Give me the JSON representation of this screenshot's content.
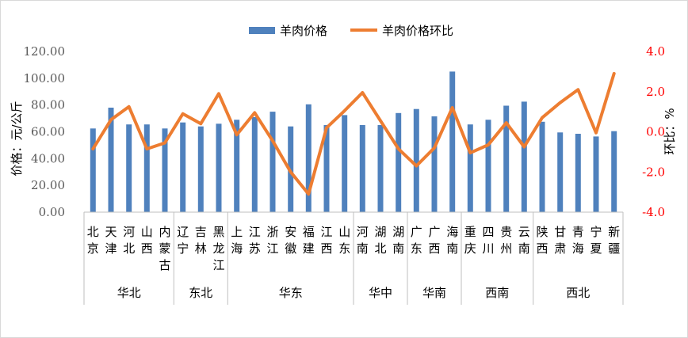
{
  "chart_data": {
    "type": "bar+line",
    "categories": [
      "北京",
      "天津",
      "河北",
      "山西",
      "内蒙古",
      "辽宁",
      "吉林",
      "黑龙江",
      "上海",
      "江苏",
      "浙江",
      "安徽",
      "福建",
      "江西",
      "山东",
      "河南",
      "湖北",
      "湖南",
      "广东",
      "广西",
      "海南",
      "重庆",
      "四川",
      "贵州",
      "云南",
      "陕西",
      "甘肃",
      "青海",
      "宁夏",
      "新疆"
    ],
    "groups": [
      {
        "name": "华北",
        "count": 5
      },
      {
        "name": "东北",
        "count": 3
      },
      {
        "name": "华东",
        "count": 7
      },
      {
        "name": "华中",
        "count": 3
      },
      {
        "name": "华南",
        "count": 3
      },
      {
        "name": "西南",
        "count": 4
      },
      {
        "name": "西北",
        "count": 5
      }
    ],
    "series": [
      {
        "name": "羊肉价格",
        "type": "bar",
        "axis": "left",
        "color": "#4f81bd",
        "values": [
          62.5,
          78,
          65.5,
          65.5,
          62.5,
          67,
          64,
          66,
          69,
          71,
          75,
          64,
          80.5,
          65,
          72.5,
          65,
          65,
          74,
          77,
          71.5,
          105,
          65.5,
          69,
          79.5,
          82.5,
          67.5,
          59.5,
          58.5,
          56.5,
          60.5
        ]
      },
      {
        "name": "羊肉价格环比",
        "type": "line",
        "axis": "right",
        "color": "#ed7d31",
        "values": [
          -0.85,
          0.6,
          1.25,
          -0.85,
          -0.55,
          0.9,
          0.4,
          1.9,
          -0.15,
          0.95,
          -0.45,
          -2.0,
          -3.1,
          0.2,
          1.05,
          1.95,
          0.55,
          -0.85,
          -1.7,
          -0.8,
          1.2,
          -1.05,
          -0.65,
          0.45,
          -0.75,
          0.7,
          1.45,
          2.1,
          -0.05,
          2.9
        ]
      }
    ],
    "yleft": {
      "label": "价格：元/公斤",
      "min": 0,
      "max": 120,
      "ticks": [
        "0.00",
        "20.00",
        "40.00",
        "60.00",
        "80.00",
        "100.00",
        "120.00"
      ]
    },
    "yright": {
      "label": "环比：%",
      "min": -4,
      "max": 4,
      "ticks": [
        "-4.0",
        "-2.0",
        "0.0",
        "2.0",
        "4.0"
      ]
    },
    "grid": false,
    "legend": "top"
  },
  "colors": {
    "bar": "#4f81bd",
    "line": "#ed7d31",
    "right_axis": "#ff0000"
  }
}
